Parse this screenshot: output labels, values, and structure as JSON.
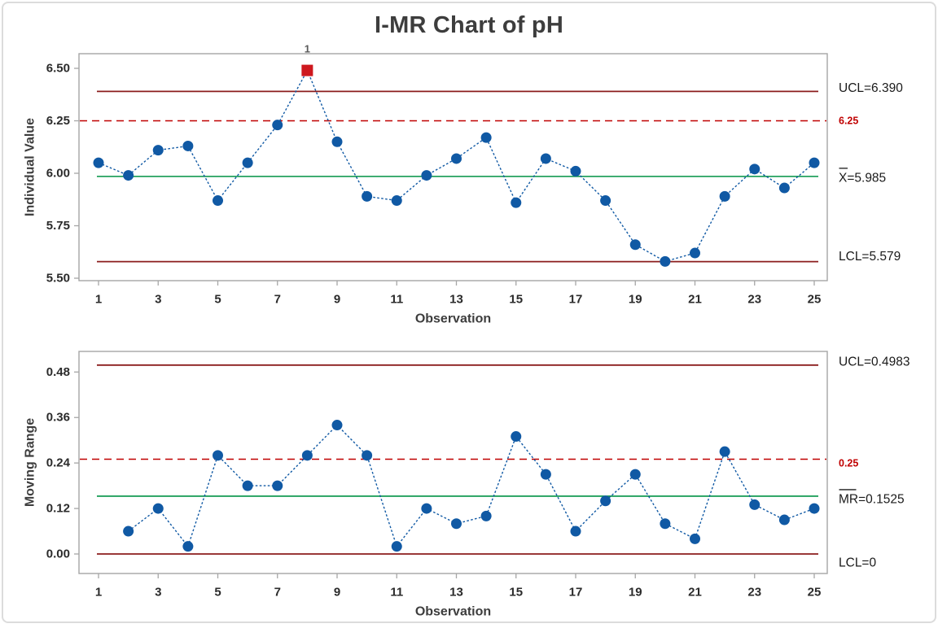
{
  "title": "I-MR Chart of pH",
  "colors": {
    "point": "#1059A4",
    "series_line": "#1059A4",
    "center_line": "#009245",
    "control_limit": "#8B1D1D",
    "spec_line": "#C00000",
    "ooc_point": "#CE181E",
    "ooc_label": "#5A5A5A",
    "axis_border": "#A6A6A6",
    "axis_title_text": "#3D3D3D",
    "tick_text": "#2B2B2B",
    "label_text": "#1A1A1A"
  },
  "chart_data": [
    {
      "type": "line",
      "name": "individuals-chart",
      "ylabel": "Individual Value",
      "xlabel": "Observation",
      "x": [
        1,
        2,
        3,
        4,
        5,
        6,
        7,
        8,
        9,
        10,
        11,
        12,
        13,
        14,
        15,
        16,
        17,
        18,
        19,
        20,
        21,
        22,
        23,
        24,
        25
      ],
      "values": [
        6.05,
        5.99,
        6.11,
        6.13,
        5.87,
        6.05,
        6.23,
        6.49,
        6.15,
        5.89,
        5.87,
        5.99,
        6.07,
        6.17,
        5.86,
        6.07,
        6.01,
        5.87,
        5.66,
        5.58,
        5.62,
        5.89,
        6.02,
        5.93,
        6.05
      ],
      "ylim": [
        5.49,
        6.57
      ],
      "yticks": [
        5.5,
        5.75,
        6.0,
        6.25,
        6.5
      ],
      "ytick_labels": [
        "5.50",
        "5.75",
        "6.00",
        "6.25",
        "6.50"
      ],
      "xticks": [
        1,
        3,
        5,
        7,
        9,
        11,
        13,
        15,
        17,
        19,
        21,
        23,
        25
      ],
      "grid": false,
      "legend": "none",
      "reference_lines": {
        "ucl": {
          "value": 6.39,
          "label": "UCL=6.390"
        },
        "spec": {
          "value": 6.25,
          "label": "6.25"
        },
        "center": {
          "value": 5.985,
          "label_overline": "X",
          "label_rest": "=5.985"
        },
        "lcl": {
          "value": 5.579,
          "label": "LCL=5.579"
        }
      },
      "out_of_control": [
        {
          "obs": 8,
          "value": 6.49,
          "label": "1"
        }
      ]
    },
    {
      "type": "line",
      "name": "moving-range-chart",
      "ylabel": "Moving Range",
      "xlabel": "Observation",
      "x": [
        2,
        3,
        4,
        5,
        6,
        7,
        8,
        9,
        10,
        11,
        12,
        13,
        14,
        15,
        16,
        17,
        18,
        19,
        20,
        21,
        22,
        23,
        24,
        25
      ],
      "values": [
        0.06,
        0.12,
        0.02,
        0.26,
        0.18,
        0.18,
        0.26,
        0.34,
        0.26,
        0.02,
        0.12,
        0.08,
        0.1,
        0.31,
        0.21,
        0.06,
        0.14,
        0.21,
        0.08,
        0.04,
        0.27,
        0.13,
        0.09,
        0.12
      ],
      "ylim": [
        -0.01,
        0.53
      ],
      "yticks": [
        0.0,
        0.12,
        0.24,
        0.36,
        0.48
      ],
      "ytick_labels": [
        "0.00",
        "0.12",
        "0.24",
        "0.36",
        "0.48"
      ],
      "xticks": [
        1,
        3,
        5,
        7,
        9,
        11,
        13,
        15,
        17,
        19,
        21,
        23,
        25
      ],
      "grid": false,
      "legend": "none",
      "reference_lines": {
        "ucl": {
          "value": 0.4983,
          "label": "UCL=0.4983"
        },
        "spec": {
          "value": 0.25,
          "label": "0.25"
        },
        "center": {
          "value": 0.1525,
          "label_overline": "MR",
          "label_rest": "=0.1525"
        },
        "lcl": {
          "value": 0,
          "label": "LCL=0"
        }
      },
      "out_of_control": []
    }
  ]
}
